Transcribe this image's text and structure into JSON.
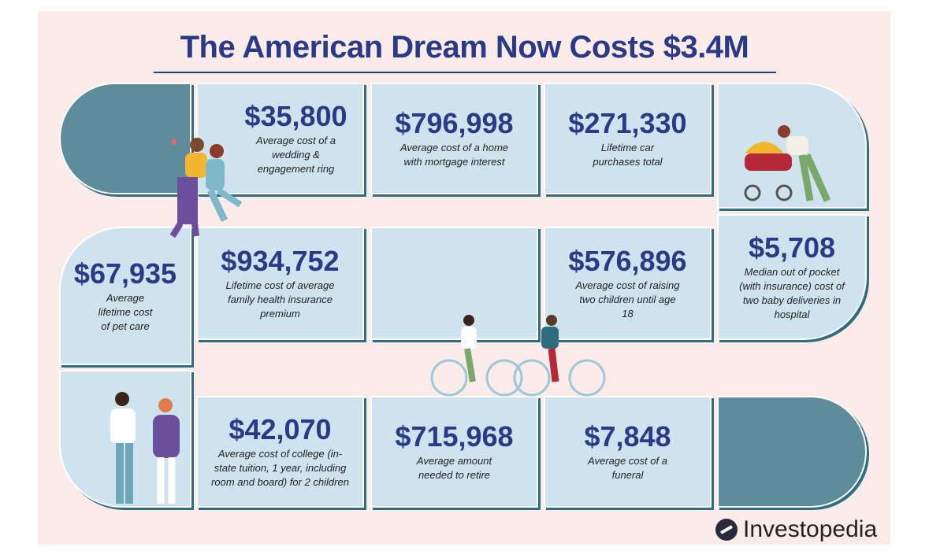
{
  "title": "The American Dream Now Costs $3.4M",
  "tiles": [
    {
      "amount": "$35,800",
      "description": "Average cost of a wedding & engagement ring"
    },
    {
      "amount": "$796,998",
      "description": "Average cost of a home with mortgage interest"
    },
    {
      "amount": "$271,330",
      "description": "Lifetime car purchases total"
    },
    {
      "amount": "$67,935",
      "description": "Average lifetime cost of pet care"
    },
    {
      "amount": "$934,752",
      "description": "Lifetime cost of average family health insurance premium"
    },
    {
      "amount": "$576,896",
      "description": "Average cost of raising two children until age 18"
    },
    {
      "amount": "$5,708",
      "description": "Median out of pocket (with insurance) cost of two baby deliveries in hospital"
    },
    {
      "amount": "$42,070",
      "description": "Average cost of college (in-state tuition, 1 year, including room and board) for 2 children"
    },
    {
      "amount": "$715,968",
      "description": "Average amount needed to retire"
    },
    {
      "amount": "$7,848",
      "description": "Average cost of a funeral"
    }
  ],
  "logo": "Investopedia"
}
